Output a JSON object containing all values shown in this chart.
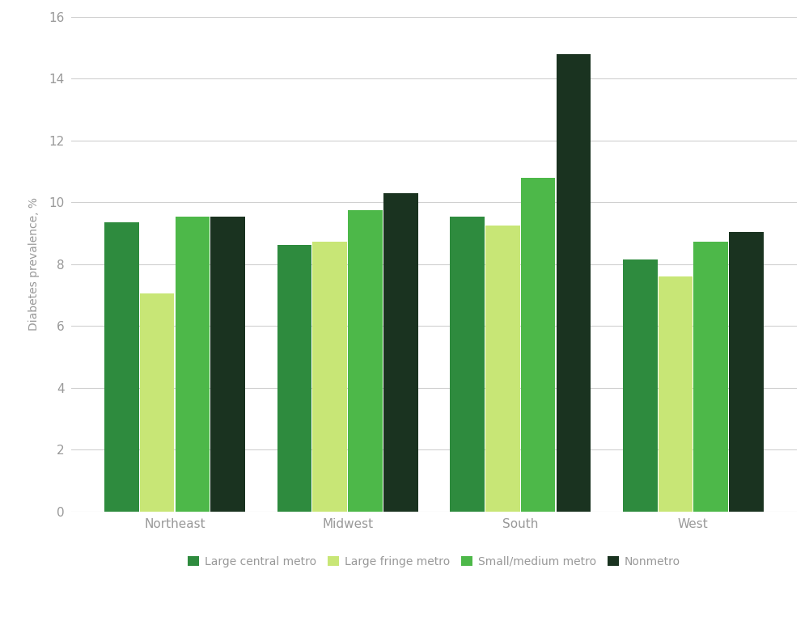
{
  "regions": [
    "Northeast",
    "Midwest",
    "South",
    "West"
  ],
  "series": {
    "Large central metro": [
      9.35,
      8.62,
      9.55,
      8.15
    ],
    "Large fringe metro": [
      7.05,
      8.72,
      9.25,
      7.6
    ],
    "Small/medium metro": [
      9.55,
      9.75,
      10.8,
      8.72
    ],
    "Nonmetro": [
      9.55,
      10.3,
      14.8,
      9.05
    ]
  },
  "colors": {
    "Large central metro": "#2e8b3e",
    "Large fringe metro": "#c8e676",
    "Small/medium metro": "#4db849",
    "Nonmetro": "#1a3320"
  },
  "ylabel": "Diabetes prevalence, %",
  "ylim": [
    0,
    16
  ],
  "yticks": [
    0,
    2,
    4,
    6,
    8,
    10,
    12,
    14,
    16
  ],
  "legend_order": [
    "Large central metro",
    "Large fringe metro",
    "Small/medium metro",
    "Nonmetro"
  ],
  "bar_width": 0.2,
  "background_color": "#ffffff",
  "grid_color": "#d0d0d0",
  "label_color": "#999999",
  "axis_fontsize": 10,
  "tick_fontsize": 11,
  "legend_fontsize": 10
}
